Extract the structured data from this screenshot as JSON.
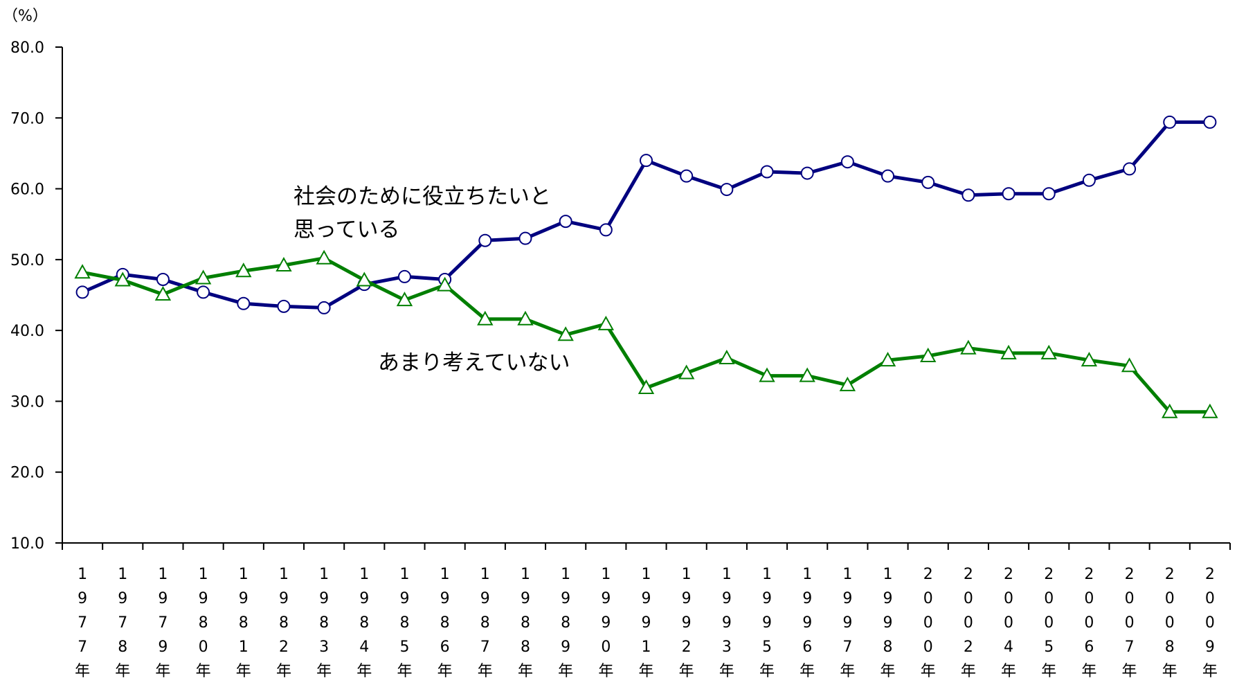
{
  "chart_data": {
    "type": "line",
    "unit_label": "（%）",
    "ylim": [
      10,
      80
    ],
    "y_ticks": [
      "10.0",
      "20.0",
      "30.0",
      "40.0",
      "50.0",
      "60.0",
      "70.0",
      "80.0"
    ],
    "grid": false,
    "legend": "none",
    "categories": [
      "1977年",
      "1978年",
      "1979年",
      "1980年",
      "1981年",
      "1982年",
      "1983年",
      "1984年",
      "1985年",
      "1986年",
      "1987年",
      "1988年",
      "1989年",
      "1990年",
      "1991年",
      "1992年",
      "1993年",
      "1995年",
      "1996年",
      "1997年",
      "1998年",
      "2000年",
      "2002年",
      "2004年",
      "2005年",
      "2006年",
      "2007年",
      "2008年",
      "2009年"
    ],
    "series": [
      {
        "color": "#00007f",
        "marker": "circle",
        "values": [
          45.4,
          47.9,
          47.2,
          45.4,
          43.8,
          43.4,
          43.2,
          46.5,
          47.6,
          47.2,
          52.7,
          53.0,
          55.4,
          54.2,
          64.0,
          61.8,
          59.9,
          62.4,
          62.2,
          63.8,
          61.8,
          60.9,
          59.1,
          59.3,
          59.3,
          61.2,
          62.8,
          69.4,
          69.4
        ]
      },
      {
        "color": "#007f00",
        "marker": "triangle",
        "values": [
          48.2,
          47.1,
          45.1,
          47.4,
          48.4,
          49.2,
          50.2,
          47.1,
          44.3,
          46.4,
          41.6,
          41.6,
          39.4,
          40.9,
          31.9,
          34.0,
          36.1,
          33.6,
          33.6,
          32.3,
          35.8,
          36.4,
          37.5,
          36.8,
          36.8,
          35.8,
          35.0,
          28.5,
          28.5
        ]
      }
    ],
    "annotations": [
      {
        "lines": [
          "社会のために役立ちたいと",
          "思っている"
        ]
      },
      {
        "lines": [
          "あまり考えていない"
        ]
      }
    ]
  }
}
